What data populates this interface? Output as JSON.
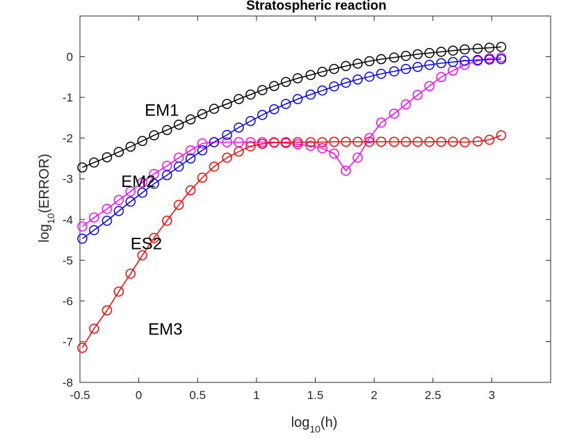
{
  "chart_data": {
    "type": "line",
    "title": "Stratospheric reaction",
    "xlabel": {
      "base": "log",
      "sub": "10",
      "arg": "(h)"
    },
    "ylabel": {
      "base": "log",
      "sub": "10",
      "arg": "(ERROR)"
    },
    "xlim": [
      -0.5,
      3.5
    ],
    "ylim": [
      -8,
      1
    ],
    "xticks": [
      -0.5,
      0,
      0.5,
      1,
      1.5,
      2,
      2.5,
      3
    ],
    "xtick_labels": [
      "-0.5",
      "0",
      "0.5",
      "1",
      "1.5",
      "2",
      "2.5",
      "3"
    ],
    "yticks": [
      -8,
      -7,
      -6,
      -5,
      -4,
      -3,
      -2,
      -1,
      0
    ],
    "ytick_labels": [
      "-8",
      "-7",
      "-6",
      "-5",
      "-4",
      "-3",
      "-2",
      "-1",
      "0"
    ],
    "grid": false,
    "marker": "open-circle",
    "x": [
      -0.48,
      -0.38,
      -0.27,
      -0.17,
      -0.07,
      0.03,
      0.13,
      0.24,
      0.34,
      0.44,
      0.54,
      0.64,
      0.75,
      0.85,
      0.95,
      1.05,
      1.15,
      1.25,
      1.35,
      1.46,
      1.56,
      1.66,
      1.76,
      1.86,
      1.96,
      2.06,
      2.17,
      2.27,
      2.37,
      2.47,
      2.57,
      2.67,
      2.77,
      2.88,
      2.98,
      3.08
    ],
    "series": [
      {
        "name": "EM1",
        "color": "#000000",
        "values": [
          -2.72,
          -2.6,
          -2.47,
          -2.34,
          -2.21,
          -2.07,
          -1.93,
          -1.8,
          -1.67,
          -1.54,
          -1.41,
          -1.28,
          -1.16,
          -1.04,
          -0.93,
          -0.82,
          -0.72,
          -0.62,
          -0.53,
          -0.45,
          -0.37,
          -0.3,
          -0.23,
          -0.17,
          -0.11,
          -0.06,
          -0.02,
          0.02,
          0.06,
          0.09,
          0.12,
          0.15,
          0.18,
          0.2,
          0.22,
          0.24
        ]
      },
      {
        "name": "EM2",
        "color": "#ff00ff",
        "values": [
          -4.17,
          -3.95,
          -3.74,
          -3.52,
          -3.31,
          -3.09,
          -2.88,
          -2.68,
          -2.48,
          -2.3,
          -2.13,
          -2.1,
          -2.1,
          -2.1,
          -2.1,
          -2.1,
          -2.1,
          -2.12,
          -2.15,
          -2.19,
          -2.25,
          -2.38,
          -2.8,
          -2.48,
          -2.0,
          -1.62,
          -1.4,
          -1.17,
          -0.94,
          -0.72,
          -0.5,
          -0.34,
          -0.2,
          -0.1,
          -0.04,
          -0.02
        ]
      },
      {
        "name": "ES2",
        "color": "#0000ff",
        "values": [
          -4.47,
          -4.26,
          -4.03,
          -3.79,
          -3.56,
          -3.34,
          -3.12,
          -2.91,
          -2.7,
          -2.5,
          -2.3,
          -2.1,
          -1.92,
          -1.74,
          -1.58,
          -1.43,
          -1.29,
          -1.16,
          -1.04,
          -0.93,
          -0.83,
          -0.73,
          -0.64,
          -0.56,
          -0.49,
          -0.42,
          -0.36,
          -0.3,
          -0.25,
          -0.2,
          -0.16,
          -0.13,
          -0.1,
          -0.08,
          -0.07,
          -0.06
        ]
      },
      {
        "name": "EM3",
        "color": "#ff0000",
        "values": [
          -7.15,
          -6.68,
          -6.23,
          -5.77,
          -5.33,
          -4.88,
          -4.45,
          -4.03,
          -3.64,
          -3.28,
          -2.97,
          -2.7,
          -2.48,
          -2.33,
          -2.2,
          -2.14,
          -2.11,
          -2.1,
          -2.1,
          -2.1,
          -2.1,
          -2.09,
          -2.09,
          -2.09,
          -2.09,
          -2.09,
          -2.09,
          -2.09,
          -2.09,
          -2.09,
          -2.09,
          -2.09,
          -2.1,
          -2.08,
          -2.04,
          -1.93
        ]
      }
    ],
    "annotations": [
      {
        "text": "EM1",
        "x": 0.05,
        "y": -1.45
      },
      {
        "text": "EM2",
        "x": -0.15,
        "y": -3.2
      },
      {
        "text": "ES2",
        "x": -0.07,
        "y": -4.73
      },
      {
        "text": "EM3",
        "x": 0.08,
        "y": -6.83
      }
    ]
  }
}
